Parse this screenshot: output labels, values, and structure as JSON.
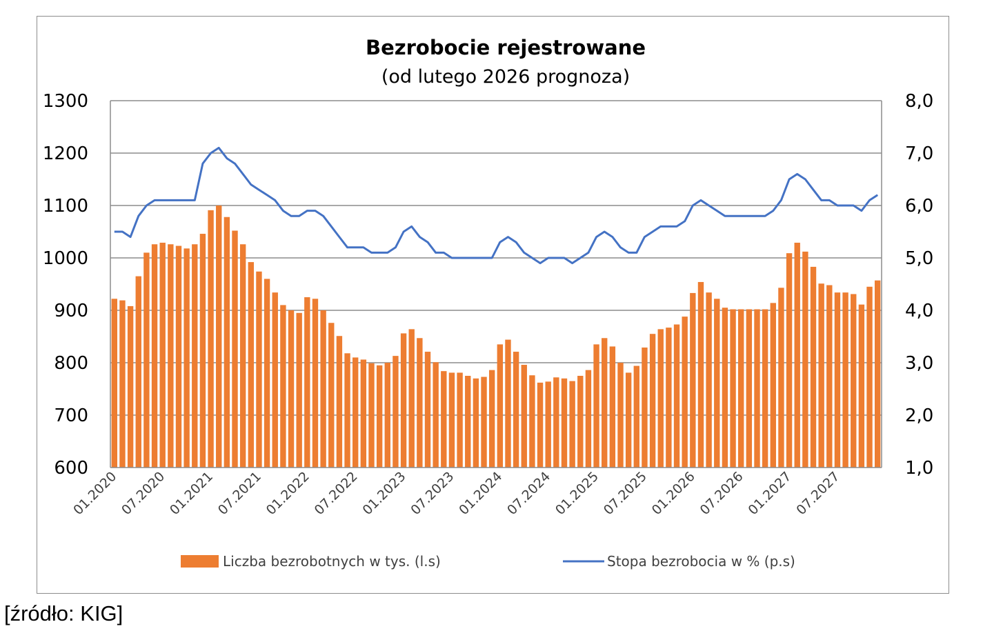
{
  "chart_data": {
    "type": "bar+line",
    "title": "Bezrobocie rejestrowane",
    "subtitle": "(od lutego 2026 prognoza)",
    "source": "[źródło: KIG]",
    "x_start": "01.2020",
    "x_tick_labels": [
      "01.2020",
      "07.2020",
      "01.2021",
      "07.2021",
      "01.2022",
      "07.2022",
      "01.2023",
      "07.2023",
      "01.2024",
      "07.2024",
      "01.2025",
      "07.2025",
      "01.2026",
      "07.2026",
      "01.2027",
      "07.2027"
    ],
    "y_left": {
      "min": 600,
      "max": 1300,
      "step": 100,
      "ticks": [
        "600",
        "700",
        "800",
        "900",
        "1000",
        "1100",
        "1200",
        "1300"
      ]
    },
    "y_right": {
      "min": 1.0,
      "max": 8.0,
      "step": 1.0,
      "ticks": [
        "1,0",
        "2,0",
        "3,0",
        "4,0",
        "5,0",
        "6,0",
        "7,0",
        "8,0"
      ]
    },
    "grid": true,
    "legend_placement": "bottom",
    "series": [
      {
        "name": "Liczba bezrobotnych w tys. (l.s)",
        "type": "bar",
        "axis": "left",
        "color": "#ED7D31",
        "values": [
          922,
          919,
          908,
          965,
          1010,
          1026,
          1029,
          1026,
          1023,
          1018,
          1026,
          1046,
          1091,
          1100,
          1078,
          1052,
          1026,
          992,
          974,
          960,
          934,
          910,
          900,
          895,
          925,
          922,
          900,
          876,
          851,
          818,
          810,
          806,
          799,
          795,
          800,
          813,
          856,
          864,
          847,
          821,
          801,
          784,
          781,
          781,
          775,
          770,
          773,
          786,
          835,
          844,
          821,
          796,
          776,
          762,
          764,
          772,
          770,
          765,
          775,
          786,
          835,
          847,
          831,
          800,
          781,
          794,
          829,
          855,
          864,
          867,
          873,
          888,
          933,
          954,
          934,
          922,
          905,
          902,
          902,
          902,
          902,
          902,
          914,
          943,
          1009,
          1029,
          1012,
          983,
          951,
          948,
          934,
          934,
          931,
          911,
          945,
          957
        ]
      },
      {
        "name": "Stopa bezrobocia w % (p.s)",
        "type": "line",
        "axis": "right",
        "color": "#4472C4",
        "values": [
          5.5,
          5.5,
          5.4,
          5.8,
          6.0,
          6.1,
          6.1,
          6.1,
          6.1,
          6.1,
          6.1,
          6.8,
          7.0,
          7.1,
          6.9,
          6.8,
          6.6,
          6.4,
          6.3,
          6.2,
          6.1,
          5.9,
          5.8,
          5.8,
          5.9,
          5.9,
          5.8,
          5.6,
          5.4,
          5.2,
          5.2,
          5.2,
          5.1,
          5.1,
          5.1,
          5.2,
          5.5,
          5.6,
          5.4,
          5.3,
          5.1,
          5.1,
          5.0,
          5.0,
          5.0,
          5.0,
          5.0,
          5.0,
          5.3,
          5.4,
          5.3,
          5.1,
          5.0,
          4.9,
          5.0,
          5.0,
          5.0,
          4.9,
          5.0,
          5.1,
          5.4,
          5.5,
          5.4,
          5.2,
          5.1,
          5.1,
          5.4,
          5.5,
          5.6,
          5.6,
          5.6,
          5.7,
          6.0,
          6.1,
          6.0,
          5.9,
          5.8,
          5.8,
          5.8,
          5.8,
          5.8,
          5.8,
          5.9,
          6.1,
          6.5,
          6.6,
          6.5,
          6.3,
          6.1,
          6.1,
          6.0,
          6.0,
          6.0,
          5.9,
          6.1,
          6.2
        ]
      }
    ]
  }
}
